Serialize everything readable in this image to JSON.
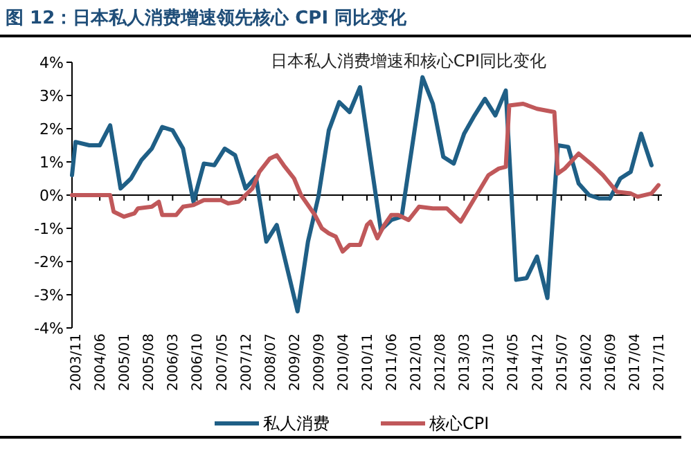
{
  "chart_data": {
    "type": "line",
    "title": "图 12：日本私人消费增速领先核心 CPI 同比变化",
    "subtitle": "日本私人消费增速和核心CPI同比变化",
    "xlim": [
      "2003-10",
      "2017-12"
    ],
    "xticks": [
      {
        "value": "2003-11",
        "label": "2003/11"
      },
      {
        "value": "2004-06",
        "label": "2004/06"
      },
      {
        "value": "2005-01",
        "label": "2005/01"
      },
      {
        "value": "2005-08",
        "label": "2005/08"
      },
      {
        "value": "2006-03",
        "label": "2006/03"
      },
      {
        "value": "2006-10",
        "label": "2006/10"
      },
      {
        "value": "2007-05",
        "label": "2007/05"
      },
      {
        "value": "2007-12",
        "label": "2007/12"
      },
      {
        "value": "2008-07",
        "label": "2008/07"
      },
      {
        "value": "2009-02",
        "label": "2009/02"
      },
      {
        "value": "2009-09",
        "label": "2009/09"
      },
      {
        "value": "2010-04",
        "label": "2010/04"
      },
      {
        "value": "2010-11",
        "label": "2010/11"
      },
      {
        "value": "2011-06",
        "label": "2011/06"
      },
      {
        "value": "2012-01",
        "label": "2012/01"
      },
      {
        "value": "2012-08",
        "label": "2012/08"
      },
      {
        "value": "2013-03",
        "label": "2013/03"
      },
      {
        "value": "2013-10",
        "label": "2013/10"
      },
      {
        "value": "2014-05",
        "label": "2014/05"
      },
      {
        "value": "2014-12",
        "label": "2014/12"
      },
      {
        "value": "2015-07",
        "label": "2015/07"
      },
      {
        "value": "2016-02",
        "label": "2016/02"
      },
      {
        "value": "2016-09",
        "label": "2016/09"
      },
      {
        "value": "2017-04",
        "label": "2017/04"
      },
      {
        "value": "2017-11",
        "label": "2017/11"
      }
    ],
    "ylim": [
      -4,
      4
    ],
    "yticks": [
      {
        "value": -4,
        "label": "-4%"
      },
      {
        "value": -3,
        "label": "-3%"
      },
      {
        "value": -2,
        "label": "-2%"
      },
      {
        "value": -1,
        "label": "-1%"
      },
      {
        "value": 0,
        "label": "0%"
      },
      {
        "value": 1,
        "label": "1%"
      },
      {
        "value": 2,
        "label": "2%"
      },
      {
        "value": 3,
        "label": "3%"
      },
      {
        "value": 4,
        "label": "4%"
      }
    ],
    "legend": "bottom",
    "series": [
      {
        "name": "私人消费",
        "color": "#1f5f86",
        "x": [
          "2003-10",
          "2003-11",
          "2004-03",
          "2004-06",
          "2004-09",
          "2004-12",
          "2005-03",
          "2005-06",
          "2005-09",
          "2005-12",
          "2006-03",
          "2006-06",
          "2006-09",
          "2006-12",
          "2007-03",
          "2007-06",
          "2007-09",
          "2007-12",
          "2008-03",
          "2008-06",
          "2008-09",
          "2009-03",
          "2009-06",
          "2009-09",
          "2009-12",
          "2010-03",
          "2010-06",
          "2010-09",
          "2011-03",
          "2011-06",
          "2011-09",
          "2012-03",
          "2012-06",
          "2012-09",
          "2012-12",
          "2013-03",
          "2013-06",
          "2013-09",
          "2013-12",
          "2014-03",
          "2014-06",
          "2014-09",
          "2014-12",
          "2015-03",
          "2015-06",
          "2015-09",
          "2015-12",
          "2016-03",
          "2016-06",
          "2016-09",
          "2016-12",
          "2017-03",
          "2017-06",
          "2017-09"
        ],
        "values": [
          0.6,
          1.6,
          1.5,
          1.5,
          2.1,
          0.2,
          0.5,
          1.05,
          1.4,
          2.05,
          1.95,
          1.4,
          -0.2,
          0.95,
          0.9,
          1.4,
          1.2,
          0.2,
          0.55,
          -1.4,
          -0.9,
          -3.5,
          -1.4,
          -0.05,
          1.95,
          2.8,
          2.5,
          3.25,
          -1.05,
          -0.75,
          -0.65,
          3.55,
          2.75,
          1.15,
          0.95,
          1.85,
          2.4,
          2.9,
          2.4,
          3.15,
          -2.55,
          -2.5,
          -1.85,
          -3.1,
          1.5,
          1.45,
          0.35,
          0.0,
          -0.1,
          -0.1,
          0.5,
          0.7,
          1.85,
          0.9
        ]
      },
      {
        "name": "核心CPI",
        "color": "#c0585a",
        "x": [
          "2003-10",
          "2004-09",
          "2004-10",
          "2005-01",
          "2005-04",
          "2005-05",
          "2005-09",
          "2005-11",
          "2005-12",
          "2006-04",
          "2006-06",
          "2006-09",
          "2006-12",
          "2007-05",
          "2007-07",
          "2007-10",
          "2008-02",
          "2008-04",
          "2008-07",
          "2008-09",
          "2008-11",
          "2009-02",
          "2009-04",
          "2009-08",
          "2009-10",
          "2009-12",
          "2010-02",
          "2010-04",
          "2010-06",
          "2010-09",
          "2010-11",
          "2010-12",
          "2011-02",
          "2011-04",
          "2011-06",
          "2011-08",
          "2011-11",
          "2012-02",
          "2012-06",
          "2012-10",
          "2013-02",
          "2013-06",
          "2013-10",
          "2014-01",
          "2014-03",
          "2014-04",
          "2014-08",
          "2014-12",
          "2015-05",
          "2015-06",
          "2015-08",
          "2015-12",
          "2016-04",
          "2016-07",
          "2016-11",
          "2017-03",
          "2017-05",
          "2017-09",
          "2017-11"
        ],
        "values": [
          0,
          0,
          -0.5,
          -0.65,
          -0.55,
          -0.4,
          -0.35,
          -0.2,
          -0.6,
          -0.6,
          -0.35,
          -0.3,
          -0.15,
          -0.15,
          -0.25,
          -0.2,
          0.2,
          0.7,
          1.1,
          1.2,
          0.9,
          0.5,
          0,
          -0.6,
          -1.0,
          -1.15,
          -1.25,
          -1.7,
          -1.5,
          -1.5,
          -0.9,
          -0.8,
          -1.3,
          -0.9,
          -0.6,
          -0.6,
          -0.75,
          -0.35,
          -0.4,
          -0.4,
          -0.8,
          -0.1,
          0.6,
          0.8,
          0.85,
          2.7,
          2.75,
          2.6,
          2.5,
          0.65,
          0.8,
          1.25,
          0.9,
          0.6,
          0.1,
          0.05,
          -0.05,
          0.05,
          0.3
        ]
      }
    ]
  }
}
